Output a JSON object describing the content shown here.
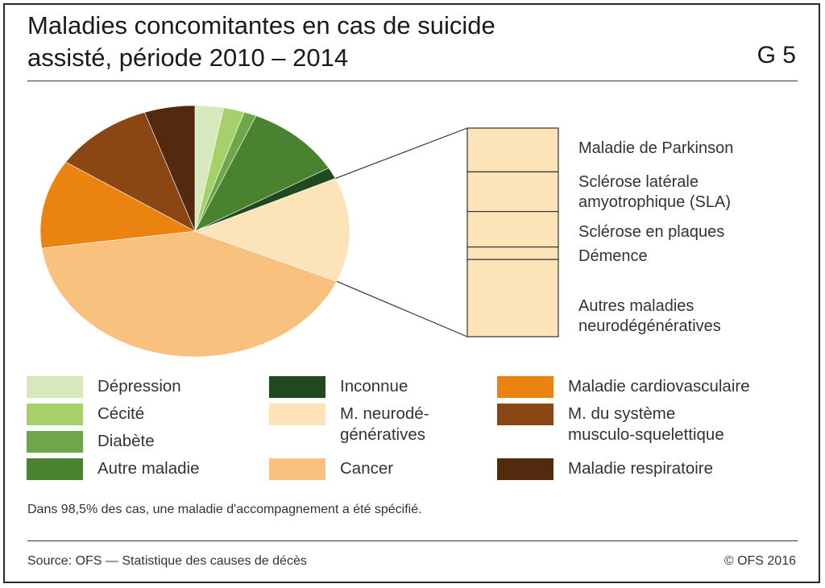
{
  "header": {
    "title_line1": "Maladies concomitantes en cas de suicide",
    "title_line2": "assisté, période 2010 – 2014",
    "code": "G 5"
  },
  "chart_data": {
    "type": "pie",
    "title": "Maladies concomitantes en cas de suicide assisté, période 2010 – 2014",
    "slices": [
      {
        "label": "Dépression",
        "value": 3.0,
        "color": "#d9e9be"
      },
      {
        "label": "Cécité",
        "value": 2.2,
        "color": "#a6d06a"
      },
      {
        "label": "Diabète",
        "value": 1.3,
        "color": "#6ea64a"
      },
      {
        "label": "Autre maladie",
        "value": 10.2,
        "color": "#4a8330"
      },
      {
        "label": "Inconnue",
        "value": 1.5,
        "color": "#1f4a1f"
      },
      {
        "label": "M. neurodégénératives",
        "value": 13.5,
        "color": "#fde3b8"
      },
      {
        "label": "Cancer",
        "value": 41.5,
        "color": "#f9c17e"
      },
      {
        "label": "Maladie cardiovasculaire",
        "value": 11.5,
        "color": "#eb8310"
      },
      {
        "label": "M. du système musculo-squelettique",
        "value": 10.5,
        "color": "#8a4714"
      },
      {
        "label": "Maladie respiratoire",
        "value": 5.3,
        "color": "#542a0e"
      }
    ],
    "breakdown": {
      "of": "M. neurodégénératives",
      "color": "#fde3b8",
      "segments": [
        {
          "label": "Maladie de Parkinson",
          "value": 21
        },
        {
          "label": "Sclérose latérale amyotrophique (SLA)",
          "value": 19
        },
        {
          "label": "Sclérose en plaques",
          "value": 17
        },
        {
          "label": "Démence",
          "value": 6
        },
        {
          "label": "Autres maladies neurodégénératives",
          "value": 37
        }
      ]
    }
  },
  "legend": [
    {
      "label": "Dépression",
      "color": "#d9e9be"
    },
    {
      "label": "Cécité",
      "color": "#a6d06a"
    },
    {
      "label": "Diabète",
      "color": "#6ea64a"
    },
    {
      "label": "Autre maladie",
      "color": "#4a8330"
    },
    {
      "label": "Inconnue",
      "color": "#1f4a1f"
    },
    {
      "label": "M. neurodé-\ngénératives",
      "color": "#fde3b8"
    },
    {
      "label": "Cancer",
      "color": "#f9c17e"
    },
    {
      "label": "Maladie cardiovasculaire",
      "color": "#eb8310"
    },
    {
      "label": "M. du système\nmusculo-squelettique",
      "color": "#8a4714"
    },
    {
      "label": "Maladie respiratoire",
      "color": "#542a0e"
    }
  ],
  "breakdown_labels": [
    "Maladie de Parkinson",
    "Sclérose latérale\namyotrophique (SLA)",
    "Sclérose en plaques",
    "Démence",
    "Autres maladies\nneurodégénératives"
  ],
  "footer": {
    "note": "Dans 98,5% des cas, une maladie d'accompagnement a été spécifié.",
    "source": "Source: OFS — Statistique des causes de décès",
    "copyright": "© OFS 2016"
  }
}
